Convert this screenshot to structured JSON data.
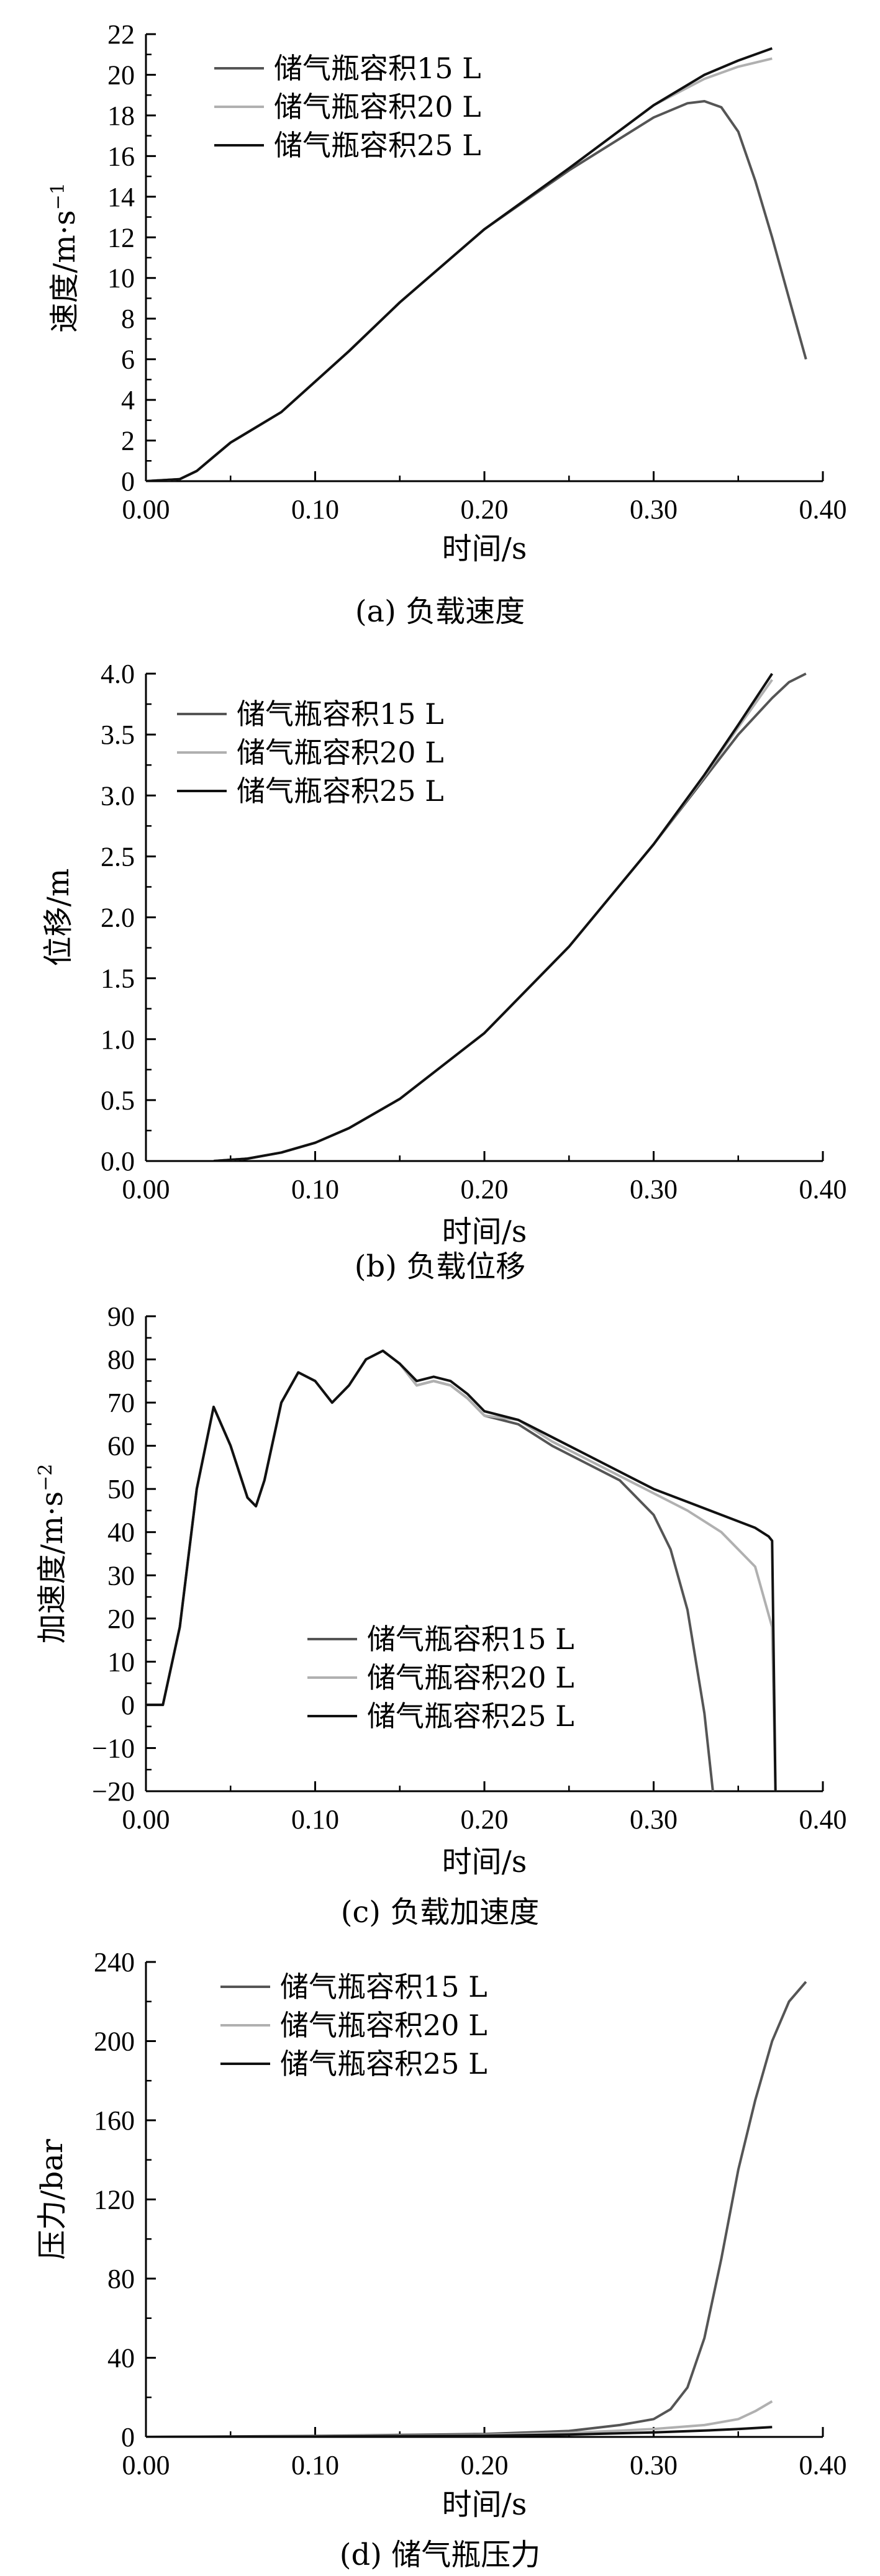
{
  "chart_data": [
    {
      "id": "a",
      "type": "line",
      "caption": "(a) 负载速度",
      "xlabel": "时间/s",
      "ylabel": "速度/m·s",
      "ylabel_sup": "−1",
      "xlim": [
        0,
        0.4
      ],
      "ylim": [
        0,
        22
      ],
      "xticks": [
        0,
        0.1,
        0.2,
        0.3,
        0.4
      ],
      "xtick_labels": [
        "0.00",
        "0.10",
        "0.20",
        "0.30",
        "0.40"
      ],
      "yticks": [
        0,
        2,
        4,
        6,
        8,
        10,
        12,
        14,
        16,
        18,
        20,
        22
      ],
      "ytick_labels": [
        "0",
        "2",
        "4",
        "6",
        "8",
        "10",
        "12",
        "14",
        "16",
        "18",
        "20",
        "22"
      ],
      "legend_position": "top-left",
      "series": [
        {
          "name": "储气瓶容积15 L",
          "color": "#555555",
          "x": [
            0,
            0.02,
            0.03,
            0.04,
            0.05,
            0.06,
            0.08,
            0.1,
            0.12,
            0.15,
            0.2,
            0.25,
            0.3,
            0.32,
            0.33,
            0.34,
            0.35,
            0.36,
            0.37,
            0.38,
            0.39
          ],
          "y": [
            0,
            0.1,
            0.5,
            1.2,
            1.9,
            2.4,
            3.4,
            4.9,
            6.4,
            8.8,
            12.4,
            15.3,
            17.9,
            18.6,
            18.7,
            18.4,
            17.2,
            14.8,
            12.0,
            9.0,
            6.0
          ]
        },
        {
          "name": "储气瓶容积20 L",
          "color": "#b0b0b0",
          "x": [
            0,
            0.02,
            0.03,
            0.04,
            0.05,
            0.06,
            0.08,
            0.1,
            0.12,
            0.15,
            0.2,
            0.25,
            0.3,
            0.33,
            0.35,
            0.37
          ],
          "y": [
            0,
            0.1,
            0.5,
            1.2,
            1.9,
            2.4,
            3.4,
            4.9,
            6.4,
            8.8,
            12.4,
            15.4,
            18.5,
            19.8,
            20.4,
            20.8
          ]
        },
        {
          "name": "储气瓶容积25 L",
          "color": "#111111",
          "x": [
            0,
            0.02,
            0.03,
            0.04,
            0.05,
            0.06,
            0.08,
            0.1,
            0.12,
            0.15,
            0.2,
            0.25,
            0.3,
            0.33,
            0.35,
            0.37
          ],
          "y": [
            0,
            0.1,
            0.5,
            1.2,
            1.9,
            2.4,
            3.4,
            4.9,
            6.4,
            8.8,
            12.4,
            15.4,
            18.5,
            20.0,
            20.7,
            21.3
          ]
        }
      ]
    },
    {
      "id": "b",
      "type": "line",
      "caption": "(b) 负载位移",
      "xlabel": "时间/s",
      "ylabel": "位移/m",
      "ylabel_sup": "",
      "xlim": [
        0,
        0.4
      ],
      "ylim": [
        0,
        4.0
      ],
      "xticks": [
        0,
        0.1,
        0.2,
        0.3,
        0.4
      ],
      "xtick_labels": [
        "0.00",
        "0.10",
        "0.20",
        "0.30",
        "0.40"
      ],
      "yticks": [
        0,
        0.5,
        1.0,
        1.5,
        2.0,
        2.5,
        3.0,
        3.5,
        4.0
      ],
      "ytick_labels": [
        "0.0",
        "0.5",
        "1.0",
        "1.5",
        "2.0",
        "2.5",
        "3.0",
        "3.5",
        "4.0"
      ],
      "legend_position": "top-left",
      "series": [
        {
          "name": "储气瓶容积15 L",
          "color": "#555555",
          "x": [
            0.04,
            0.06,
            0.08,
            0.1,
            0.12,
            0.15,
            0.2,
            0.25,
            0.3,
            0.33,
            0.35,
            0.37,
            0.38,
            0.39
          ],
          "y": [
            0.0,
            0.02,
            0.07,
            0.15,
            0.27,
            0.51,
            1.05,
            1.76,
            2.6,
            3.14,
            3.5,
            3.8,
            3.93,
            4.0
          ]
        },
        {
          "name": "储气瓶容积20 L",
          "color": "#b0b0b0",
          "x": [
            0.04,
            0.06,
            0.08,
            0.1,
            0.12,
            0.15,
            0.2,
            0.25,
            0.3,
            0.33,
            0.35,
            0.37
          ],
          "y": [
            0.0,
            0.02,
            0.07,
            0.15,
            0.27,
            0.51,
            1.05,
            1.76,
            2.6,
            3.16,
            3.56,
            3.95
          ]
        },
        {
          "name": "储气瓶容积25 L",
          "color": "#111111",
          "x": [
            0.04,
            0.06,
            0.08,
            0.1,
            0.12,
            0.15,
            0.2,
            0.25,
            0.3,
            0.33,
            0.35,
            0.37
          ],
          "y": [
            0.0,
            0.02,
            0.07,
            0.15,
            0.27,
            0.51,
            1.05,
            1.76,
            2.6,
            3.17,
            3.58,
            4.0
          ]
        }
      ]
    },
    {
      "id": "c",
      "type": "line",
      "caption": "(c) 负载加速度",
      "xlabel": "时间/s",
      "ylabel": "加速度/m·s",
      "ylabel_sup": "−2",
      "xlim": [
        0,
        0.4
      ],
      "ylim": [
        -20,
        90
      ],
      "xticks": [
        0,
        0.1,
        0.2,
        0.3,
        0.4
      ],
      "xtick_labels": [
        "0.00",
        "0.10",
        "0.20",
        "0.30",
        "0.40"
      ],
      "yticks": [
        -20,
        -10,
        0,
        10,
        20,
        30,
        40,
        50,
        60,
        70,
        80,
        90
      ],
      "ytick_labels": [
        "−20",
        "−10",
        "0",
        "10",
        "20",
        "30",
        "40",
        "50",
        "60",
        "70",
        "80",
        "90"
      ],
      "legend_position": "bottom-center",
      "series": [
        {
          "name": "储气瓶容积15 L",
          "color": "#555555",
          "x": [
            0,
            0.01,
            0.02,
            0.03,
            0.04,
            0.05,
            0.06,
            0.065,
            0.07,
            0.08,
            0.09,
            0.1,
            0.11,
            0.12,
            0.13,
            0.14,
            0.15,
            0.16,
            0.17,
            0.18,
            0.19,
            0.2,
            0.22,
            0.24,
            0.26,
            0.28,
            0.3,
            0.31,
            0.32,
            0.33,
            0.335
          ],
          "y": [
            0,
            0,
            18,
            50,
            69,
            60,
            48,
            46,
            52,
            70,
            77,
            75,
            70,
            74,
            80,
            82,
            79,
            74,
            75,
            74,
            71,
            67,
            65,
            60,
            56,
            52,
            44,
            36,
            22,
            -2,
            -20
          ]
        },
        {
          "name": "储气瓶容积20 L",
          "color": "#b0b0b0",
          "x": [
            0,
            0.01,
            0.02,
            0.03,
            0.04,
            0.05,
            0.06,
            0.065,
            0.07,
            0.08,
            0.09,
            0.1,
            0.11,
            0.12,
            0.13,
            0.14,
            0.15,
            0.16,
            0.17,
            0.18,
            0.19,
            0.2,
            0.22,
            0.24,
            0.26,
            0.28,
            0.3,
            0.32,
            0.34,
            0.36,
            0.37,
            0.372
          ],
          "y": [
            0,
            0,
            18,
            50,
            69,
            60,
            48,
            46,
            52,
            70,
            77,
            75,
            70,
            74,
            80,
            82,
            79,
            74,
            75,
            74,
            71,
            67,
            66,
            61,
            57,
            53,
            49,
            45,
            40,
            32,
            18,
            -20
          ]
        },
        {
          "name": "储气瓶容积25 L",
          "color": "#111111",
          "x": [
            0,
            0.01,
            0.02,
            0.03,
            0.04,
            0.05,
            0.06,
            0.065,
            0.07,
            0.08,
            0.09,
            0.1,
            0.11,
            0.12,
            0.13,
            0.14,
            0.15,
            0.16,
            0.17,
            0.18,
            0.19,
            0.2,
            0.22,
            0.24,
            0.26,
            0.28,
            0.3,
            0.32,
            0.34,
            0.36,
            0.368,
            0.37,
            0.372
          ],
          "y": [
            0,
            0,
            18,
            50,
            69,
            60,
            48,
            46,
            52,
            70,
            77,
            75,
            70,
            74,
            80,
            82,
            79,
            75,
            76,
            75,
            72,
            68,
            66,
            62,
            58,
            54,
            50,
            47,
            44,
            41,
            39,
            38,
            -20
          ]
        }
      ]
    },
    {
      "id": "d",
      "type": "line",
      "caption": "(d) 储气瓶压力",
      "xlabel": "时间/s",
      "ylabel": "压力/bar",
      "ylabel_sup": "",
      "xlim": [
        0,
        0.4
      ],
      "ylim": [
        0,
        240
      ],
      "xticks": [
        0,
        0.1,
        0.2,
        0.3,
        0.4
      ],
      "xtick_labels": [
        "0.00",
        "0.10",
        "0.20",
        "0.30",
        "0.40"
      ],
      "yticks": [
        0,
        40,
        80,
        120,
        160,
        200,
        240
      ],
      "ytick_labels": [
        "0",
        "40",
        "80",
        "120",
        "160",
        "200",
        "240"
      ],
      "legend_position": "top-left",
      "series": [
        {
          "name": "储气瓶容积15 L",
          "color": "#555555",
          "x": [
            0,
            0.1,
            0.2,
            0.25,
            0.28,
            0.3,
            0.31,
            0.32,
            0.33,
            0.34,
            0.35,
            0.36,
            0.37,
            0.38,
            0.39
          ],
          "y": [
            0,
            0.5,
            1.5,
            3,
            6,
            9,
            14,
            25,
            50,
            90,
            135,
            170,
            200,
            220,
            230
          ]
        },
        {
          "name": "储气瓶容积20 L",
          "color": "#b0b0b0",
          "x": [
            0,
            0.1,
            0.2,
            0.25,
            0.3,
            0.33,
            0.35,
            0.36,
            0.37
          ],
          "y": [
            0,
            0.3,
            1.0,
            2.0,
            4.0,
            6.0,
            9.0,
            13.0,
            18.0
          ]
        },
        {
          "name": "储气瓶容积25 L",
          "color": "#111111",
          "x": [
            0,
            0.1,
            0.2,
            0.25,
            0.3,
            0.33,
            0.35,
            0.37
          ],
          "y": [
            0,
            0.2,
            0.6,
            1.2,
            2.3,
            3.2,
            4.0,
            5.0
          ]
        }
      ]
    }
  ]
}
